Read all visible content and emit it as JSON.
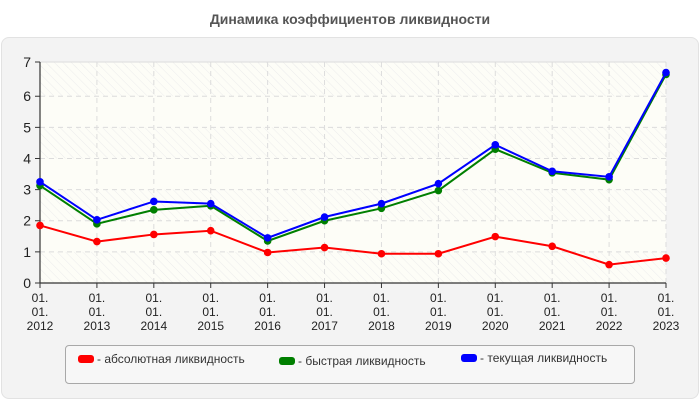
{
  "title": "Динамика коэффициентов ликвидности",
  "chart_data": {
    "type": "line",
    "title": "Динамика коэффициентов ликвидности",
    "xlabel": "",
    "ylabel": "",
    "categories": [
      "01.01.2012",
      "01.01.2013",
      "01.01.2014",
      "01.01.2015",
      "01.01.2016",
      "01.01.2017",
      "01.01.2018",
      "01.01.2019",
      "01.01.2020",
      "01.01.2021",
      "01.01.2022",
      "01.01.2023"
    ],
    "x_tick_lines": [
      [
        "01.",
        "01.",
        "2012"
      ],
      [
        "01.",
        "01.",
        "2013"
      ],
      [
        "01.",
        "01.",
        "2014"
      ],
      [
        "01.",
        "01.",
        "2015"
      ],
      [
        "01.",
        "01.",
        "2016"
      ],
      [
        "01.",
        "01.",
        "2017"
      ],
      [
        "01.",
        "01.",
        "2018"
      ],
      [
        "01.",
        "01.",
        "2019"
      ],
      [
        "01.",
        "01.",
        "2020"
      ],
      [
        "01.",
        "01.",
        "2021"
      ],
      [
        "01.",
        "01.",
        "2022"
      ],
      [
        "01.",
        "01.",
        "2023"
      ]
    ],
    "yticks": [
      0,
      1,
      2,
      3,
      4,
      5,
      6,
      7
    ],
    "ylim": [
      0,
      7.1
    ],
    "grid": true,
    "legend_position": "bottom",
    "series": [
      {
        "name": "абсолютная ликвидность",
        "color": "#ff0000",
        "values": [
          1.85,
          1.33,
          1.56,
          1.68,
          0.98,
          1.14,
          0.94,
          0.94,
          1.49,
          1.18,
          0.59,
          0.8
        ]
      },
      {
        "name": "быстрая ликвидность",
        "color": "#007f00",
        "values": [
          3.13,
          1.9,
          2.35,
          2.48,
          1.35,
          2.0,
          2.4,
          2.97,
          4.3,
          3.54,
          3.32,
          6.7
        ]
      },
      {
        "name": "текущая ликвидность",
        "color": "#0000ff",
        "values": [
          3.25,
          2.03,
          2.62,
          2.55,
          1.45,
          2.12,
          2.55,
          3.19,
          4.44,
          3.59,
          3.41,
          6.76
        ]
      }
    ]
  },
  "legend": {
    "items": [
      {
        "label": "- абсолютная ликвидность",
        "color": "#ff0000"
      },
      {
        "label": "- быстрая ликвидность",
        "color": "#007f00"
      },
      {
        "label": "- текущая ликвидность",
        "color": "#0000ff"
      }
    ]
  }
}
